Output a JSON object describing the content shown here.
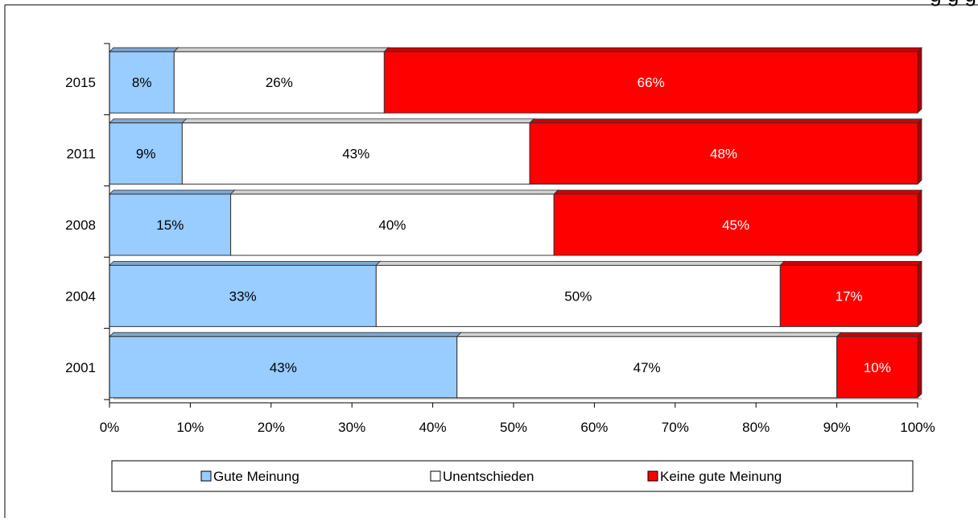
{
  "chart_data": {
    "type": "bar",
    "orientation": "horizontal",
    "stacked": "percent",
    "categories": [
      "2015",
      "2011",
      "2008",
      "2004",
      "2001"
    ],
    "series": [
      {
        "name": "Gute Meinung",
        "values": [
          8,
          9,
          15,
          33,
          43
        ],
        "labels": [
          "8%",
          "9%",
          "15%",
          "33%",
          "43%"
        ],
        "color": "#99ccff",
        "label_color": "#000000"
      },
      {
        "name": "Unentschieden",
        "values": [
          26,
          43,
          40,
          50,
          47
        ],
        "labels": [
          "26%",
          "43%",
          "40%",
          "50%",
          "47%"
        ],
        "color": "#ffffff",
        "label_color": "#000000"
      },
      {
        "name": "Keine gute Meinung",
        "values": [
          66,
          48,
          45,
          17,
          10
        ],
        "labels": [
          "66%",
          "48%",
          "45%",
          "17%",
          "10%"
        ],
        "color": "#ff0000",
        "label_color": "#ffffff"
      }
    ],
    "xlim": [
      0,
      100
    ],
    "xticks": [
      0,
      10,
      20,
      30,
      40,
      50,
      60,
      70,
      80,
      90,
      100
    ],
    "xtick_labels": [
      "0%",
      "10%",
      "20%",
      "30%",
      "40%",
      "50%",
      "60%",
      "70%",
      "80%",
      "90%",
      "100%"
    ],
    "legend_position": "bottom",
    "grid": false
  },
  "header_text": "g           g           g"
}
